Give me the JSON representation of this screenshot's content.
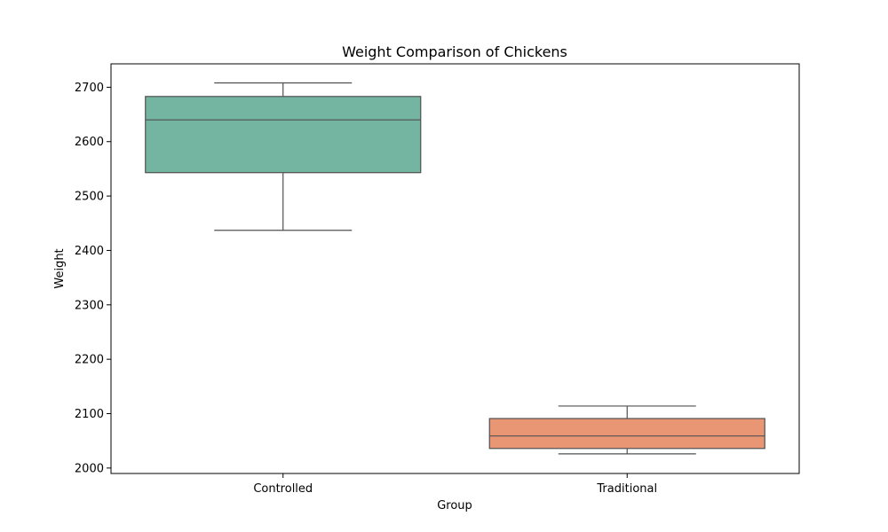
{
  "chart_data": {
    "type": "box",
    "title": "Weight Comparison of Chickens",
    "xlabel": "Group",
    "ylabel": "Weight",
    "ylim": [
      1990,
      2743
    ],
    "yticks": [
      2000,
      2100,
      2200,
      2300,
      2400,
      2500,
      2600,
      2700
    ],
    "categories": [
      "Controlled",
      "Traditional"
    ],
    "boxes": [
      {
        "category": "Controlled",
        "color": "#73b5a1",
        "whisker_low": 2437,
        "q1": 2543,
        "median": 2640,
        "q3": 2683,
        "whisker_high": 2708
      },
      {
        "category": "Traditional",
        "color": "#e99675",
        "whisker_low": 2026,
        "q1": 2036,
        "median": 2059,
        "q3": 2091,
        "whisker_high": 2114
      }
    ],
    "line_color": "#505050",
    "grid": false,
    "legend": "none"
  }
}
